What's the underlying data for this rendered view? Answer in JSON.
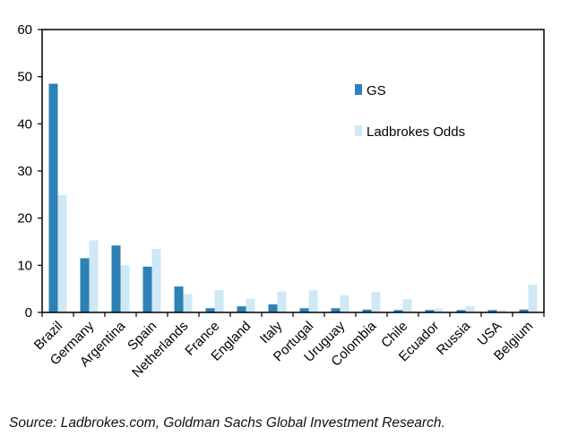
{
  "chart_data": {
    "type": "bar",
    "categories": [
      "Brazil",
      "Germany",
      "Argentina",
      "Spain",
      "Netherlands",
      "France",
      "England",
      "Italy",
      "Portugal",
      "Uruguay",
      "Colombia",
      "Chile",
      "Ecuador",
      "Russia",
      "USA",
      "Belgium"
    ],
    "series": [
      {
        "name": "GS",
        "color": "#2e81b5",
        "values": [
          48.5,
          11.5,
          14.2,
          9.7,
          5.5,
          0.9,
          1.3,
          1.7,
          0.9,
          0.9,
          0.6,
          0.5,
          0.5,
          0.5,
          0.5,
          0.6
        ]
      },
      {
        "name": "Ladbrokes Odds",
        "color": "#cfe8f5",
        "values": [
          24.9,
          15.3,
          10.0,
          13.5,
          3.9,
          4.7,
          2.9,
          4.4,
          4.7,
          3.6,
          4.4,
          2.8,
          0.8,
          1.3,
          0.5,
          5.9
        ]
      }
    ],
    "yticks": [
      0,
      10,
      20,
      30,
      40,
      50,
      60
    ],
    "ylim": [
      0,
      60
    ],
    "legend_position": "upper-right",
    "grid": false
  },
  "source": "Source: Ladbrokes.com, Goldman Sachs Global Investment Research."
}
